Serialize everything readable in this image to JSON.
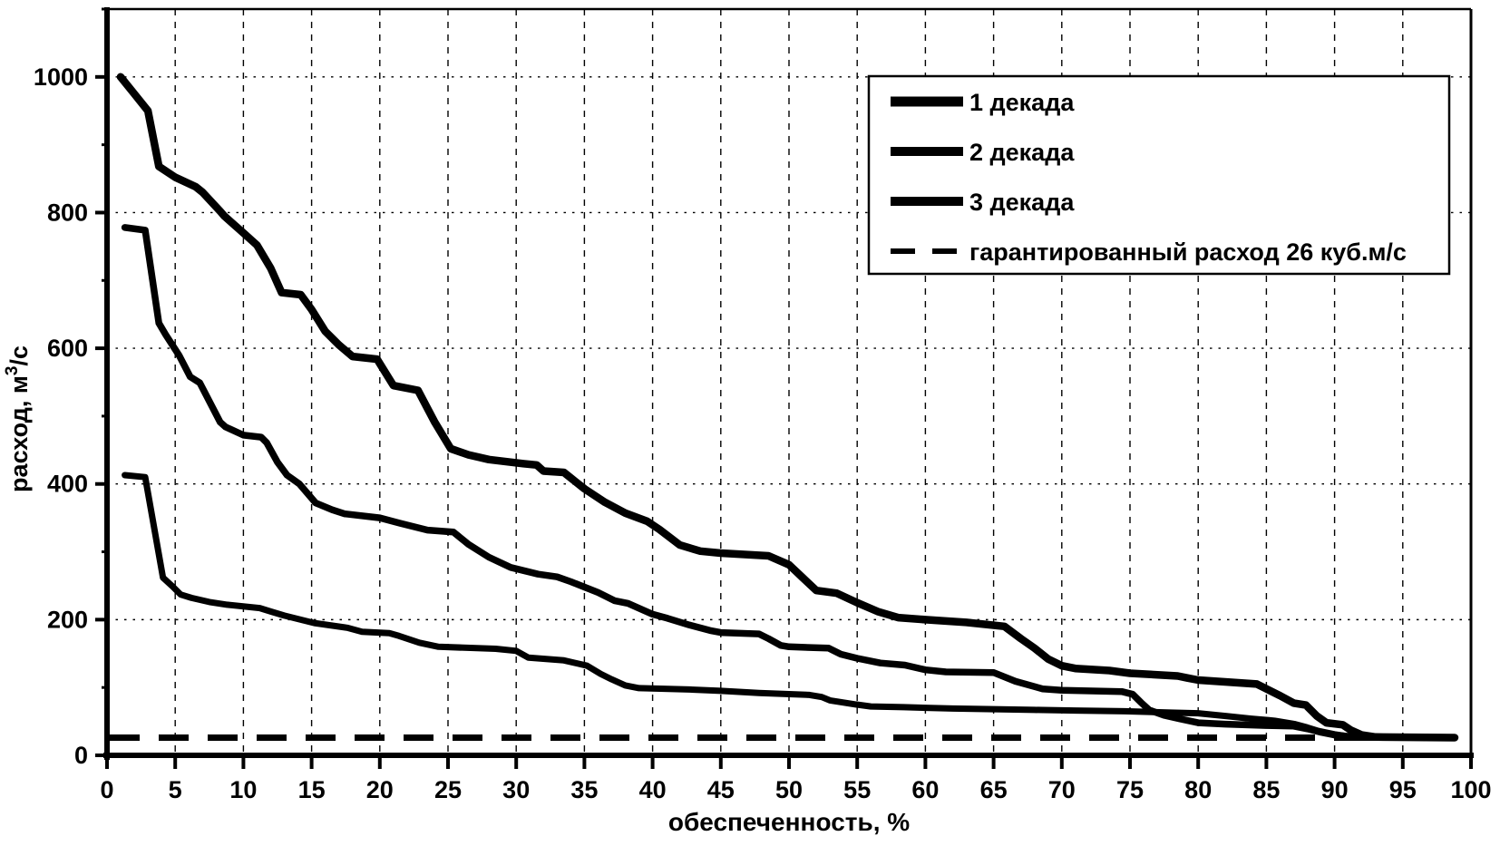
{
  "colors": {
    "line": "#000000",
    "background": "#ffffff"
  },
  "chart_data": {
    "type": "line",
    "title": "",
    "xlabel": "обеспеченность, %",
    "ylabel": "расход, м3/с",
    "ylabel_parts": {
      "prefix": "расход, м",
      "sup": "3",
      "suffix": "/с"
    },
    "xlim": [
      0,
      100
    ],
    "ylim": [
      0,
      1100
    ],
    "x_ticks": [
      0,
      5,
      10,
      15,
      20,
      25,
      30,
      35,
      40,
      45,
      50,
      55,
      60,
      65,
      70,
      75,
      80,
      85,
      90,
      95,
      100
    ],
    "y_ticks": [
      0,
      200,
      400,
      600,
      800,
      1000
    ],
    "grid": {
      "vertical_every": 5,
      "horizontal_every": 200,
      "style": "dotted"
    },
    "legend": {
      "position": "top-right",
      "entries": [
        {
          "label": "1 декада",
          "style": "solid"
        },
        {
          "label": "2 декада",
          "style": "solid"
        },
        {
          "label": "3 декада",
          "style": "solid"
        },
        {
          "label": "гарантированный расход 26 куб.м/с",
          "style": "dashed"
        }
      ]
    },
    "guaranteed_line": {
      "label": "гарантированный расход 26 куб.м/с",
      "value": 26,
      "x_start": 0,
      "x_end": 98.8
    },
    "series": [
      {
        "name": "1 декада",
        "stroke_width": 8.5,
        "points": [
          [
            1,
            1000
          ],
          [
            2,
            975
          ],
          [
            3,
            950
          ],
          [
            3.8,
            868
          ],
          [
            5,
            852
          ],
          [
            6.5,
            838
          ],
          [
            7,
            830
          ],
          [
            8.3,
            802
          ],
          [
            8.6,
            795
          ],
          [
            10,
            770
          ],
          [
            11,
            752
          ],
          [
            12,
            718
          ],
          [
            12.8,
            682
          ],
          [
            14.2,
            679
          ],
          [
            15,
            657
          ],
          [
            16,
            625
          ],
          [
            17,
            605
          ],
          [
            18,
            588
          ],
          [
            19.8,
            584
          ],
          [
            21,
            545
          ],
          [
            22.8,
            538
          ],
          [
            24,
            492
          ],
          [
            25.2,
            452
          ],
          [
            26.5,
            443
          ],
          [
            28,
            436
          ],
          [
            30.5,
            430
          ],
          [
            31.5,
            428
          ],
          [
            32,
            419
          ],
          [
            33.5,
            417
          ],
          [
            35,
            393
          ],
          [
            36.5,
            373
          ],
          [
            38,
            357
          ],
          [
            39.6,
            345
          ],
          [
            40.5,
            333
          ],
          [
            42,
            310
          ],
          [
            43.5,
            301
          ],
          [
            45,
            298
          ],
          [
            48.5,
            294
          ],
          [
            50,
            281
          ],
          [
            51,
            262
          ],
          [
            52,
            243
          ],
          [
            53.5,
            239
          ],
          [
            55,
            225
          ],
          [
            56.5,
            212
          ],
          [
            58,
            203
          ],
          [
            60,
            200
          ],
          [
            63,
            196
          ],
          [
            65.8,
            190
          ],
          [
            67,
            172
          ],
          [
            68,
            158
          ],
          [
            69,
            142
          ],
          [
            70,
            132
          ],
          [
            71,
            128
          ],
          [
            73.5,
            125
          ],
          [
            75,
            121
          ],
          [
            78.5,
            117
          ],
          [
            79.2,
            114
          ],
          [
            80,
            111
          ],
          [
            84.3,
            105
          ],
          [
            86,
            88
          ],
          [
            87,
            77
          ],
          [
            87.9,
            74
          ],
          [
            88.7,
            58
          ],
          [
            89.4,
            48
          ],
          [
            90.6,
            45
          ],
          [
            91.2,
            37
          ],
          [
            92,
            30
          ],
          [
            93,
            27
          ],
          [
            98.8,
            26
          ]
        ]
      },
      {
        "name": "2 декада",
        "stroke_width": 7.5,
        "points": [
          [
            1.3,
            778
          ],
          [
            2.8,
            774
          ],
          [
            3.8,
            637
          ],
          [
            4.3,
            620
          ],
          [
            5.3,
            589
          ],
          [
            6.1,
            558
          ],
          [
            6.8,
            549
          ],
          [
            8.3,
            491
          ],
          [
            8.7,
            484
          ],
          [
            10,
            472
          ],
          [
            11.3,
            469
          ],
          [
            11.7,
            461
          ],
          [
            12.5,
            432
          ],
          [
            13.2,
            413
          ],
          [
            14.1,
            400
          ],
          [
            15.3,
            372
          ],
          [
            16.5,
            362
          ],
          [
            17.4,
            356
          ],
          [
            20,
            350
          ],
          [
            21.5,
            342
          ],
          [
            23.5,
            332
          ],
          [
            25.4,
            329
          ],
          [
            26.5,
            311
          ],
          [
            28,
            292
          ],
          [
            29.6,
            277
          ],
          [
            31.6,
            267
          ],
          [
            33,
            263
          ],
          [
            34,
            256
          ],
          [
            36,
            240
          ],
          [
            37.2,
            228
          ],
          [
            38.2,
            224
          ],
          [
            40,
            208
          ],
          [
            41.1,
            202
          ],
          [
            42.7,
            192
          ],
          [
            44.2,
            184
          ],
          [
            45,
            181
          ],
          [
            47.8,
            179
          ],
          [
            48.5,
            172
          ],
          [
            49.4,
            162
          ],
          [
            50,
            160
          ],
          [
            52.9,
            158
          ],
          [
            53.8,
            149
          ],
          [
            55,
            143
          ],
          [
            56.7,
            136
          ],
          [
            58.5,
            133
          ],
          [
            60,
            126
          ],
          [
            61.5,
            123
          ],
          [
            65,
            122
          ],
          [
            66.6,
            109
          ],
          [
            68.6,
            98
          ],
          [
            70,
            96
          ],
          [
            74.4,
            94
          ],
          [
            75.2,
            90
          ],
          [
            75.8,
            78
          ],
          [
            76.4,
            67
          ],
          [
            77.5,
            59
          ],
          [
            78.6,
            54
          ],
          [
            80,
            48
          ],
          [
            82,
            46
          ],
          [
            85,
            44
          ],
          [
            87,
            43
          ],
          [
            88,
            39
          ],
          [
            89,
            34
          ],
          [
            90,
            30
          ],
          [
            91,
            28
          ],
          [
            92,
            27
          ],
          [
            98.8,
            26
          ]
        ]
      },
      {
        "name": "3 декада",
        "stroke_width": 7,
        "points": [
          [
            1.3,
            413
          ],
          [
            2.8,
            410
          ],
          [
            4.1,
            262
          ],
          [
            4.8,
            249
          ],
          [
            5.4,
            237
          ],
          [
            6.2,
            232
          ],
          [
            7.5,
            226
          ],
          [
            8.8,
            222
          ],
          [
            11.2,
            217
          ],
          [
            12,
            212
          ],
          [
            13,
            206
          ],
          [
            15.2,
            195
          ],
          [
            17.6,
            188
          ],
          [
            18.7,
            182
          ],
          [
            20.7,
            180
          ],
          [
            21.4,
            176
          ],
          [
            22.9,
            166
          ],
          [
            24.3,
            160
          ],
          [
            28.5,
            157
          ],
          [
            30,
            154
          ],
          [
            30.9,
            144
          ],
          [
            33.5,
            140
          ],
          [
            35.2,
            132
          ],
          [
            36.2,
            120
          ],
          [
            37,
            112
          ],
          [
            38,
            103
          ],
          [
            39,
            99
          ],
          [
            42.7,
            97
          ],
          [
            45,
            95
          ],
          [
            47.8,
            92
          ],
          [
            51.5,
            89
          ],
          [
            52.4,
            86
          ],
          [
            53,
            81
          ],
          [
            54.9,
            75
          ],
          [
            56,
            72
          ],
          [
            58.4,
            71
          ],
          [
            62,
            69
          ],
          [
            65,
            68
          ],
          [
            68,
            67
          ],
          [
            71,
            66
          ],
          [
            74.6,
            65
          ],
          [
            78,
            63
          ],
          [
            80,
            62
          ],
          [
            81,
            60
          ],
          [
            82,
            58
          ],
          [
            83.9,
            54
          ],
          [
            85.6,
            51
          ],
          [
            87.1,
            46
          ],
          [
            88,
            41
          ],
          [
            88.8,
            36
          ],
          [
            90,
            31
          ],
          [
            91,
            28
          ],
          [
            92,
            26
          ],
          [
            98.8,
            26
          ]
        ]
      }
    ]
  }
}
